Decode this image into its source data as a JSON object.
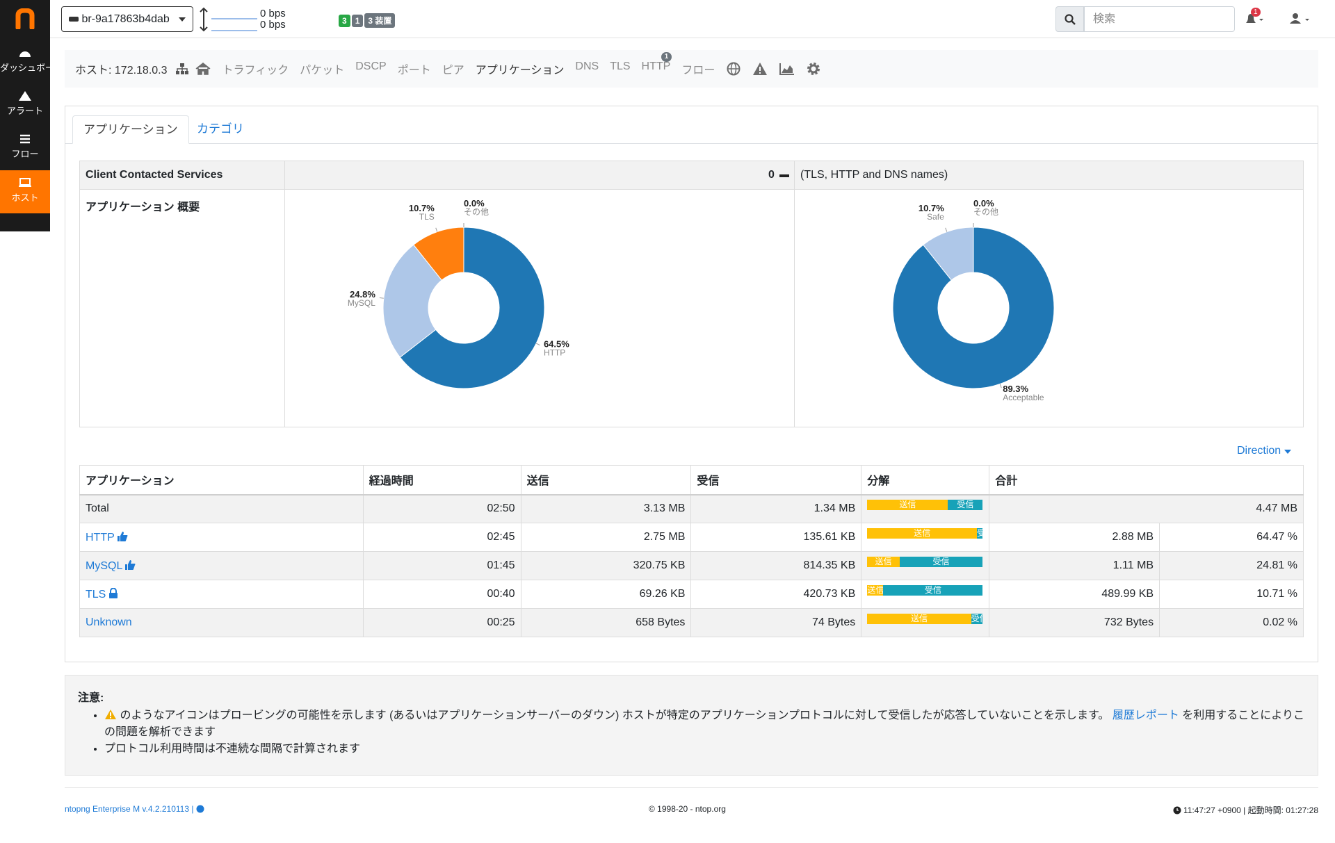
{
  "sidebar": {
    "items": [
      "ダッシュボード",
      "アラート",
      "フロー",
      "ホスト"
    ]
  },
  "topbar": {
    "interface": "br-9a17863b4dab",
    "upload": "0 bps",
    "download": "0 bps",
    "badges": [
      "3",
      "1",
      "3 装置"
    ],
    "search_placeholder": "検索",
    "alert_count": "1"
  },
  "host_nav": {
    "host": "ホスト: 172.18.0.3",
    "items": [
      "トラフィック",
      "パケット",
      "DSCP",
      "ポート",
      "ピア",
      "アプリケーション",
      "DNS",
      "TLS",
      "HTTP",
      "フロー"
    ],
    "http_badge": "1"
  },
  "tabs": [
    "アプリケーション",
    "カテゴリ"
  ],
  "overview": {
    "header": "Client Contacted Services",
    "count": "0",
    "names_note": "(TLS, HTTP and DNS names)",
    "title": "アプリケーション 概要"
  },
  "chart_data": [
    {
      "type": "pie",
      "categories": [
        "HTTP",
        "MySQL",
        "TLS",
        "その他"
      ],
      "values": [
        64.5,
        24.8,
        10.7,
        0.0
      ],
      "value_labels": [
        "64.5%",
        "24.8%",
        "10.7%",
        "0.0%"
      ],
      "colors": [
        "#1f77b4",
        "#aec7e8",
        "#ff7f0e",
        "#ffbb78"
      ]
    },
    {
      "type": "pie",
      "categories": [
        "Acceptable",
        "Safe",
        "その他"
      ],
      "values": [
        89.3,
        10.7,
        0.0
      ],
      "value_labels": [
        "89.3%",
        "10.7%",
        "0.0%"
      ],
      "colors": [
        "#1f77b4",
        "#aec7e8",
        "#ff7f0e"
      ]
    }
  ],
  "direction": "Direction",
  "table": {
    "columns": [
      "アプリケーション",
      "経過時間",
      "送信",
      "受信",
      "分解",
      "合計"
    ],
    "breakdown_labels": {
      "sent": "送信",
      "received": "受信"
    },
    "breakdown_colors": {
      "sent": "#ffc107",
      "received": "#17a2b8"
    },
    "rows": [
      {
        "name": "Total",
        "duration": "02:50",
        "sent": "3.13 MB",
        "received": "1.34 MB",
        "breakdown": {
          "sent": 70,
          "received": 30
        },
        "total": "4.47 MB"
      },
      {
        "name": "HTTP",
        "duration": "02:45",
        "sent": "2.75 MB",
        "received": "135.61 KB",
        "breakdown": {
          "sent": 95,
          "received": 5
        },
        "total": "2.88 MB",
        "percent": "64.47 %"
      },
      {
        "name": "MySQL",
        "duration": "01:45",
        "sent": "320.75 KB",
        "received": "814.35 KB",
        "breakdown": {
          "sent": 28,
          "received": 72
        },
        "total": "1.11 MB",
        "percent": "24.81 %"
      },
      {
        "name": "TLS",
        "duration": "00:40",
        "sent": "69.26 KB",
        "received": "420.73 KB",
        "breakdown": {
          "sent": 14,
          "received": 86
        },
        "total": "489.99 KB",
        "percent": "10.71 %"
      },
      {
        "name": "Unknown",
        "duration": "00:25",
        "sent": "658 Bytes",
        "received": "74 Bytes",
        "breakdown": {
          "sent": 90,
          "received": 10
        },
        "total": "732 Bytes",
        "percent": "0.02 %"
      }
    ]
  },
  "notes": {
    "title": "注意:",
    "items": [
      {
        "text": "のようなアイコンはプロービングの可能性を示します (あるいはアプリケーションサーバーのダウン) ホストが特定のアプリケーションプロトコルに対して受信したが応答していないことを示します。",
        "link": "履歴レポート",
        "text_after": "を利用することによりこの問題を解析できます"
      },
      {
        "text": "プロトコル利用時間は不連続な間隔で計算されます"
      }
    ]
  },
  "footer": {
    "version": "ntopng Enterprise M v.4.2.210113 |",
    "copyright": "© 1998-20 - ntop.org",
    "time": "11:47:27 +0900 | 起動時間: 01:27:28"
  }
}
